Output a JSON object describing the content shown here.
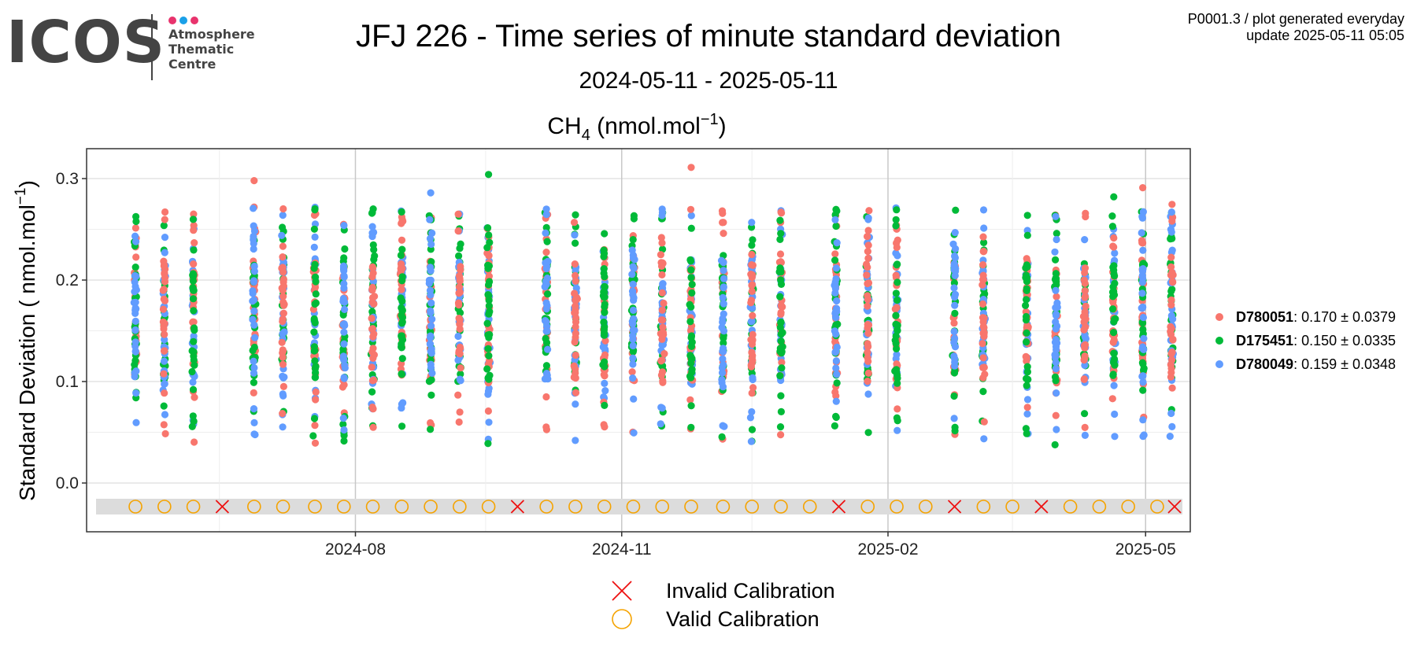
{
  "logo": {
    "wordmark": "ICOS",
    "subtitle": "Atmosphere\nThematic\nCentre",
    "dot_colors": [
      "#e8336d",
      "#1aa0e8",
      "#e8336d"
    ]
  },
  "header": {
    "title": "JFJ 226 - Time series of minute standard deviation",
    "subtitle": "2024-05-11 - 2025-05-11",
    "meta_line1": "P0001.3 / plot generated everyday",
    "meta_line2": "update  2025-05-11 05:05"
  },
  "chart_data": {
    "type": "scatter",
    "panel_title": "CH4 (nmol.mol-1)",
    "ylabel": "Standard Deviation ( nmol.mol-1)",
    "x_axis": {
      "type": "date",
      "range": [
        "2024-05-11",
        "2025-05-11"
      ],
      "major_ticks": [
        "2024-08",
        "2024-11",
        "2025-02",
        "2025-05"
      ]
    },
    "y_axis": {
      "range": [
        -0.05,
        0.33
      ],
      "ticks": [
        0.0,
        0.1,
        0.2,
        0.3
      ],
      "tick_labels": [
        "0.0",
        "0.1",
        "0.2",
        "0.3"
      ]
    },
    "grid": true,
    "legend_position": "right",
    "series": [
      {
        "name": "D780051",
        "summary": ": 0.170 ± 0.0379",
        "color": "#F8766D"
      },
      {
        "name": "D175451",
        "summary": ": 0.150 ± 0.0335",
        "color": "#00BA38"
      },
      {
        "name": "D780049",
        "summary": ": 0.159 ± 0.0348",
        "color": "#619CFF"
      }
    ],
    "sampling_dates": [
      "2024-05-17",
      "2024-05-27",
      "2024-06-06",
      "2024-06-27",
      "2024-07-07",
      "2024-07-18",
      "2024-07-28",
      "2024-08-07",
      "2024-08-17",
      "2024-08-27",
      "2024-09-06",
      "2024-09-16",
      "2024-10-06",
      "2024-10-16",
      "2024-10-26",
      "2024-11-05",
      "2024-11-15",
      "2024-11-25",
      "2024-12-06",
      "2024-12-16",
      "2024-12-26",
      "2025-01-14",
      "2025-01-25",
      "2025-02-04",
      "2025-02-24",
      "2025-03-06",
      "2025-03-21",
      "2025-03-31",
      "2025-04-10",
      "2025-04-20",
      "2025-04-30",
      "2025-05-10"
    ],
    "example_points": [
      {
        "series": "D780051",
        "date": "2024-06-27",
        "value": 0.298
      },
      {
        "series": "D780051",
        "date": "2024-11-25",
        "value": 0.311
      },
      {
        "series": "D175451",
        "date": "2024-09-16",
        "value": 0.304
      },
      {
        "series": "D780049",
        "date": "2024-08-27",
        "value": 0.286
      },
      {
        "series": "D780051",
        "date": "2025-04-30",
        "value": 0.291
      },
      {
        "series": "D175451",
        "date": "2025-04-20",
        "value": 0.282
      },
      {
        "series": "D780049",
        "date": "2025-05-10",
        "value": 0.267
      }
    ],
    "calibrations": [
      {
        "date": "2024-05-17",
        "status": "valid"
      },
      {
        "date": "2024-05-27",
        "status": "valid"
      },
      {
        "date": "2024-06-06",
        "status": "valid"
      },
      {
        "date": "2024-06-16",
        "status": "invalid"
      },
      {
        "date": "2024-06-27",
        "status": "valid"
      },
      {
        "date": "2024-07-07",
        "status": "valid"
      },
      {
        "date": "2024-07-18",
        "status": "valid"
      },
      {
        "date": "2024-07-28",
        "status": "valid"
      },
      {
        "date": "2024-08-07",
        "status": "valid"
      },
      {
        "date": "2024-08-17",
        "status": "valid"
      },
      {
        "date": "2024-08-27",
        "status": "valid"
      },
      {
        "date": "2024-09-06",
        "status": "valid"
      },
      {
        "date": "2024-09-16",
        "status": "valid"
      },
      {
        "date": "2024-09-26",
        "status": "invalid"
      },
      {
        "date": "2024-10-06",
        "status": "valid"
      },
      {
        "date": "2024-10-16",
        "status": "valid"
      },
      {
        "date": "2024-10-26",
        "status": "valid"
      },
      {
        "date": "2024-11-05",
        "status": "valid"
      },
      {
        "date": "2024-11-15",
        "status": "valid"
      },
      {
        "date": "2024-11-25",
        "status": "valid"
      },
      {
        "date": "2024-12-06",
        "status": "valid"
      },
      {
        "date": "2024-12-16",
        "status": "valid"
      },
      {
        "date": "2024-12-26",
        "status": "valid"
      },
      {
        "date": "2025-01-05",
        "status": "valid"
      },
      {
        "date": "2025-01-15",
        "status": "invalid"
      },
      {
        "date": "2025-01-25",
        "status": "valid"
      },
      {
        "date": "2025-02-04",
        "status": "valid"
      },
      {
        "date": "2025-02-14",
        "status": "valid"
      },
      {
        "date": "2025-02-24",
        "status": "invalid"
      },
      {
        "date": "2025-03-06",
        "status": "valid"
      },
      {
        "date": "2025-03-16",
        "status": "valid"
      },
      {
        "date": "2025-03-26",
        "status": "invalid"
      },
      {
        "date": "2025-04-05",
        "status": "valid"
      },
      {
        "date": "2025-04-15",
        "status": "valid"
      },
      {
        "date": "2025-04-25",
        "status": "valid"
      },
      {
        "date": "2025-05-05",
        "status": "valid"
      },
      {
        "date": "2025-05-11",
        "status": "invalid"
      }
    ],
    "bottom_legend": [
      {
        "label": "Invalid Calibration",
        "symbol": "x",
        "color": "#EE1111"
      },
      {
        "label": "Valid Calibration",
        "symbol": "circle",
        "color": "#F5A300"
      }
    ]
  }
}
